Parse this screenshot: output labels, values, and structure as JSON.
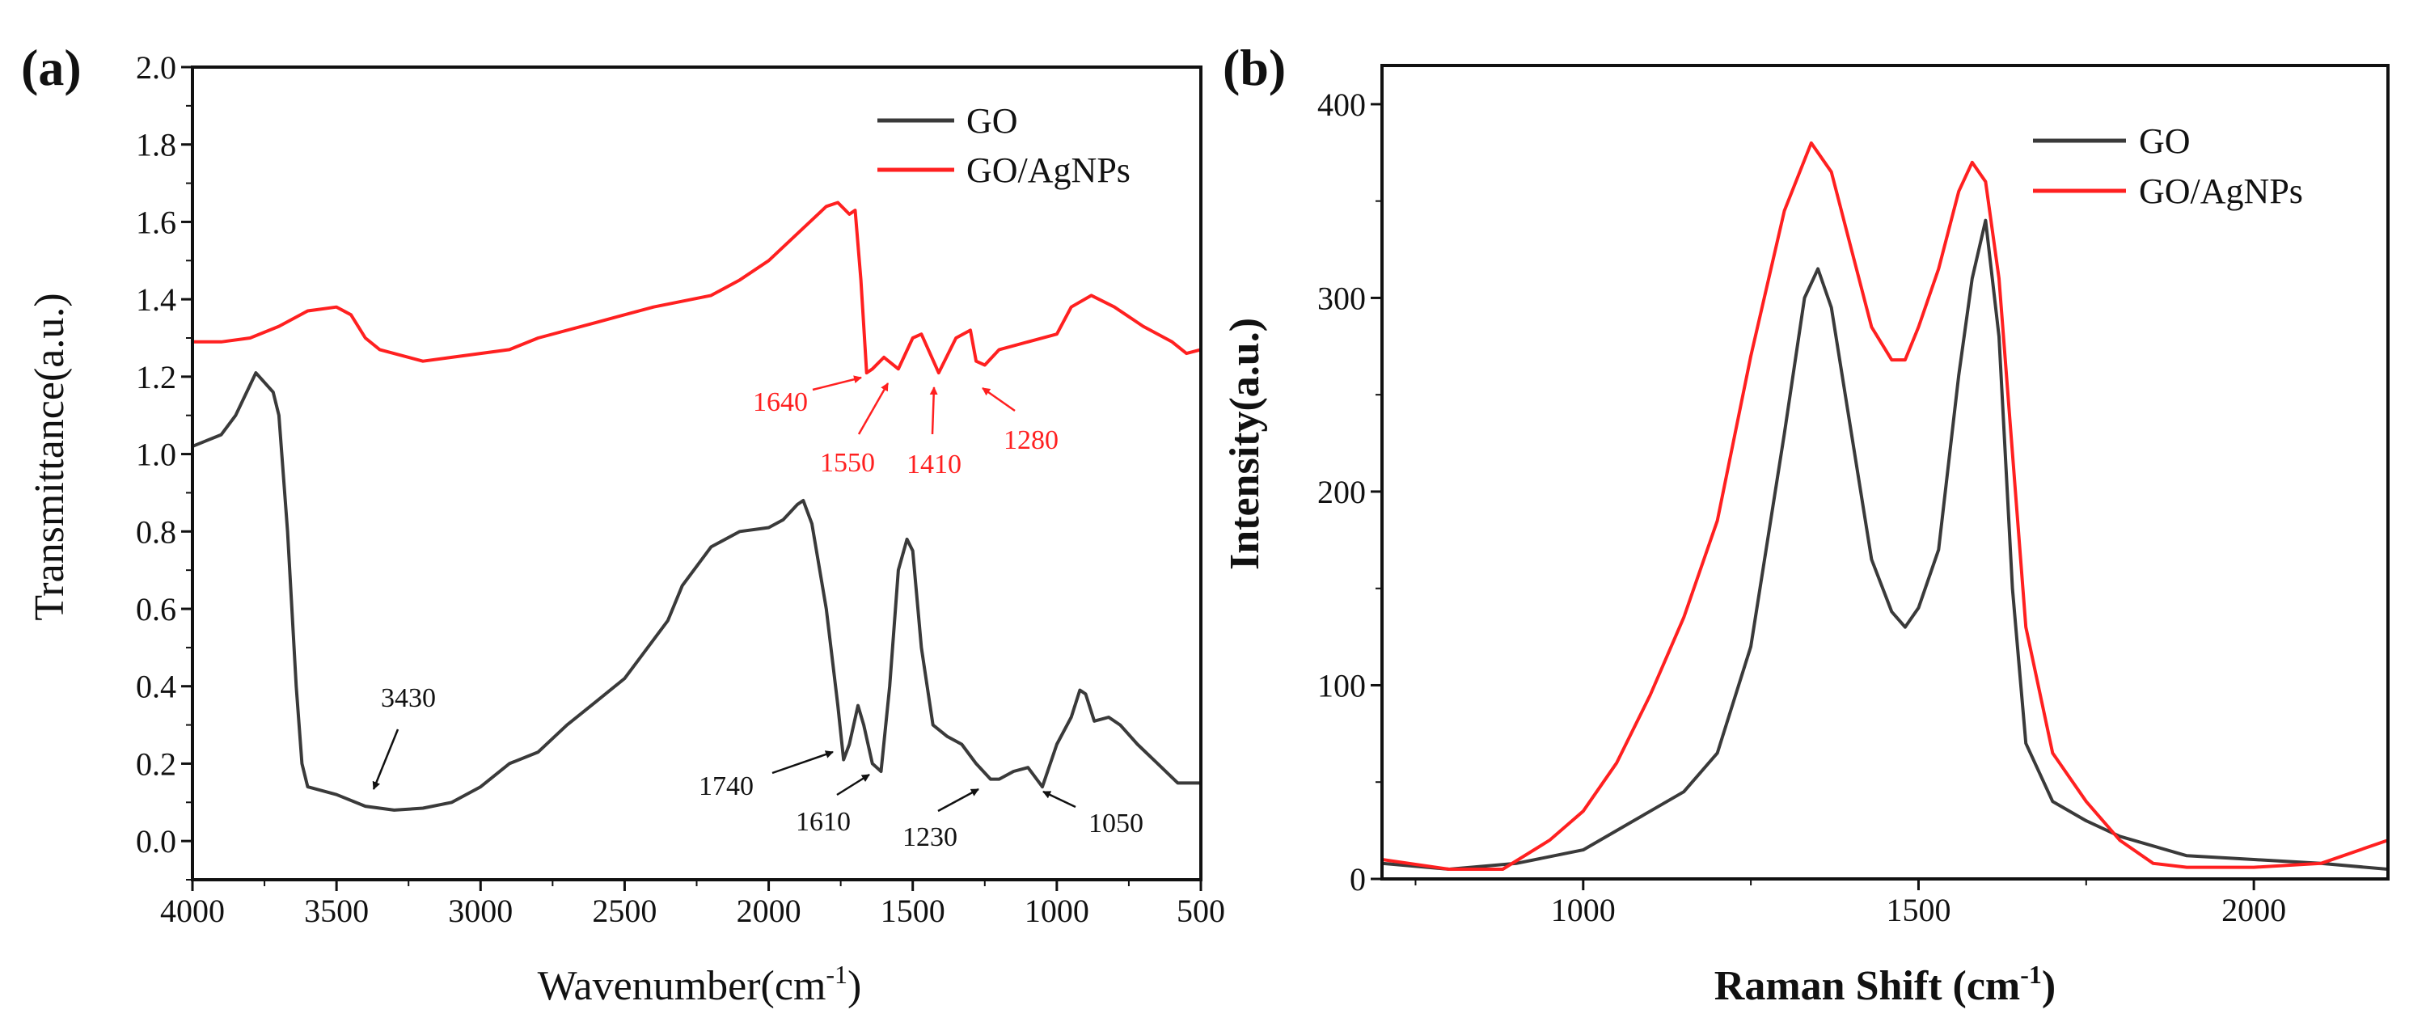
{
  "chart_data": [
    {
      "panel_label": "(a)",
      "type": "line",
      "xlabel": "Wavenumber(cm",
      "xlabel_sup": "-1",
      "xlabel_close": ")",
      "ylabel": "Transmittance(a.u.)",
      "xlim": [
        4000,
        500
      ],
      "ylim": [
        -0.1,
        2.0
      ],
      "xticks": [
        4000,
        3500,
        3000,
        2500,
        2000,
        1500,
        1000,
        500
      ],
      "yticks": [
        "0.0",
        "0.2",
        "0.4",
        "0.6",
        "0.8",
        "1.0",
        "1.2",
        "1.4",
        "1.6",
        "1.8",
        "2.0"
      ],
      "legend_position": "top-right",
      "series": [
        {
          "name": "GO",
          "color": "#3a3a3a",
          "points": [
            [
              4000,
              1.02
            ],
            [
              3900,
              1.05
            ],
            [
              3850,
              1.1
            ],
            [
              3780,
              1.21
            ],
            [
              3720,
              1.16
            ],
            [
              3700,
              1.1
            ],
            [
              3670,
              0.8
            ],
            [
              3640,
              0.4
            ],
            [
              3620,
              0.2
            ],
            [
              3600,
              0.14
            ],
            [
              3500,
              0.12
            ],
            [
              3400,
              0.09
            ],
            [
              3300,
              0.08
            ],
            [
              3200,
              0.085
            ],
            [
              3100,
              0.1
            ],
            [
              3000,
              0.14
            ],
            [
              2900,
              0.2
            ],
            [
              2800,
              0.23
            ],
            [
              2700,
              0.3
            ],
            [
              2600,
              0.36
            ],
            [
              2500,
              0.42
            ],
            [
              2400,
              0.52
            ],
            [
              2350,
              0.57
            ],
            [
              2300,
              0.66
            ],
            [
              2200,
              0.76
            ],
            [
              2100,
              0.8
            ],
            [
              2000,
              0.81
            ],
            [
              1950,
              0.83
            ],
            [
              1900,
              0.87
            ],
            [
              1880,
              0.88
            ],
            [
              1850,
              0.82
            ],
            [
              1800,
              0.6
            ],
            [
              1760,
              0.35
            ],
            [
              1740,
              0.21
            ],
            [
              1720,
              0.25
            ],
            [
              1690,
              0.35
            ],
            [
              1670,
              0.3
            ],
            [
              1640,
              0.2
            ],
            [
              1610,
              0.18
            ],
            [
              1580,
              0.4
            ],
            [
              1550,
              0.7
            ],
            [
              1520,
              0.78
            ],
            [
              1500,
              0.75
            ],
            [
              1470,
              0.5
            ],
            [
              1430,
              0.3
            ],
            [
              1380,
              0.27
            ],
            [
              1330,
              0.25
            ],
            [
              1280,
              0.2
            ],
            [
              1230,
              0.16
            ],
            [
              1200,
              0.16
            ],
            [
              1150,
              0.18
            ],
            [
              1100,
              0.19
            ],
            [
              1050,
              0.14
            ],
            [
              1000,
              0.25
            ],
            [
              950,
              0.32
            ],
            [
              920,
              0.39
            ],
            [
              900,
              0.38
            ],
            [
              870,
              0.31
            ],
            [
              820,
              0.32
            ],
            [
              780,
              0.3
            ],
            [
              720,
              0.25
            ],
            [
              650,
              0.2
            ],
            [
              580,
              0.15
            ],
            [
              500,
              0.15
            ]
          ]
        },
        {
          "name": "GO/AgNPs",
          "color": "#ff2020",
          "points": [
            [
              4000,
              1.29
            ],
            [
              3900,
              1.29
            ],
            [
              3800,
              1.3
            ],
            [
              3700,
              1.33
            ],
            [
              3600,
              1.37
            ],
            [
              3500,
              1.38
            ],
            [
              3450,
              1.36
            ],
            [
              3400,
              1.3
            ],
            [
              3350,
              1.27
            ],
            [
              3200,
              1.24
            ],
            [
              3100,
              1.25
            ],
            [
              3000,
              1.26
            ],
            [
              2900,
              1.27
            ],
            [
              2800,
              1.3
            ],
            [
              2600,
              1.34
            ],
            [
              2400,
              1.38
            ],
            [
              2200,
              1.41
            ],
            [
              2100,
              1.45
            ],
            [
              2000,
              1.5
            ],
            [
              1900,
              1.57
            ],
            [
              1800,
              1.64
            ],
            [
              1760,
              1.65
            ],
            [
              1720,
              1.62
            ],
            [
              1700,
              1.63
            ],
            [
              1680,
              1.45
            ],
            [
              1660,
              1.21
            ],
            [
              1640,
              1.22
            ],
            [
              1600,
              1.25
            ],
            [
              1550,
              1.22
            ],
            [
              1500,
              1.3
            ],
            [
              1470,
              1.31
            ],
            [
              1410,
              1.21
            ],
            [
              1350,
              1.3
            ],
            [
              1300,
              1.32
            ],
            [
              1280,
              1.24
            ],
            [
              1250,
              1.23
            ],
            [
              1200,
              1.27
            ],
            [
              1100,
              1.29
            ],
            [
              1000,
              1.31
            ],
            [
              950,
              1.38
            ],
            [
              880,
              1.41
            ],
            [
              800,
              1.38
            ],
            [
              700,
              1.33
            ],
            [
              600,
              1.29
            ],
            [
              550,
              1.26
            ],
            [
              500,
              1.27
            ]
          ]
        }
      ],
      "annotations": [
        {
          "text": "3430",
          "series": "GO"
        },
        {
          "text": "1740",
          "series": "GO"
        },
        {
          "text": "1610",
          "series": "GO"
        },
        {
          "text": "1230",
          "series": "GO"
        },
        {
          "text": "1050",
          "series": "GO"
        },
        {
          "text": "1640",
          "series": "GO/AgNPs"
        },
        {
          "text": "1550",
          "series": "GO/AgNPs"
        },
        {
          "text": "1410",
          "series": "GO/AgNPs"
        },
        {
          "text": "1280",
          "series": "GO/AgNPs"
        }
      ]
    },
    {
      "panel_label": "(b)",
      "type": "line",
      "xlabel": "Raman Shift (cm",
      "xlabel_sup": "-1",
      "xlabel_close": ")",
      "ylabel": "Intensity(a.u.)",
      "xlim": [
        700,
        2200
      ],
      "ylim": [
        0,
        420
      ],
      "xticks": [
        1000,
        1500,
        2000
      ],
      "yticks": [
        "0",
        "100",
        "200",
        "300",
        "400"
      ],
      "legend_position": "top-right",
      "series": [
        {
          "name": "GO",
          "color": "#3a3a3a",
          "points": [
            [
              700,
              8
            ],
            [
              800,
              5
            ],
            [
              900,
              8
            ],
            [
              1000,
              15
            ],
            [
              1050,
              25
            ],
            [
              1100,
              35
            ],
            [
              1150,
              45
            ],
            [
              1200,
              65
            ],
            [
              1250,
              120
            ],
            [
              1300,
              230
            ],
            [
              1330,
              300
            ],
            [
              1350,
              315
            ],
            [
              1370,
              295
            ],
            [
              1400,
              230
            ],
            [
              1430,
              165
            ],
            [
              1460,
              138
            ],
            [
              1480,
              130
            ],
            [
              1500,
              140
            ],
            [
              1530,
              170
            ],
            [
              1560,
              260
            ],
            [
              1580,
              310
            ],
            [
              1600,
              340
            ],
            [
              1620,
              280
            ],
            [
              1640,
              150
            ],
            [
              1660,
              70
            ],
            [
              1700,
              40
            ],
            [
              1750,
              30
            ],
            [
              1800,
              22
            ],
            [
              1900,
              12
            ],
            [
              2000,
              10
            ],
            [
              2100,
              8
            ],
            [
              2200,
              5
            ]
          ]
        },
        {
          "name": "GO/AgNPs",
          "color": "#ff2020",
          "points": [
            [
              700,
              10
            ],
            [
              800,
              5
            ],
            [
              880,
              5
            ],
            [
              950,
              20
            ],
            [
              1000,
              35
            ],
            [
              1050,
              60
            ],
            [
              1100,
              95
            ],
            [
              1150,
              135
            ],
            [
              1200,
              185
            ],
            [
              1250,
              270
            ],
            [
              1300,
              345
            ],
            [
              1340,
              380
            ],
            [
              1370,
              365
            ],
            [
              1400,
              325
            ],
            [
              1430,
              285
            ],
            [
              1460,
              268
            ],
            [
              1480,
              268
            ],
            [
              1500,
              285
            ],
            [
              1530,
              315
            ],
            [
              1560,
              355
            ],
            [
              1580,
              370
            ],
            [
              1600,
              360
            ],
            [
              1620,
              310
            ],
            [
              1640,
              220
            ],
            [
              1660,
              130
            ],
            [
              1700,
              65
            ],
            [
              1750,
              40
            ],
            [
              1800,
              20
            ],
            [
              1850,
              8
            ],
            [
              1900,
              6
            ],
            [
              2000,
              6
            ],
            [
              2100,
              8
            ],
            [
              2200,
              20
            ]
          ]
        }
      ]
    }
  ]
}
